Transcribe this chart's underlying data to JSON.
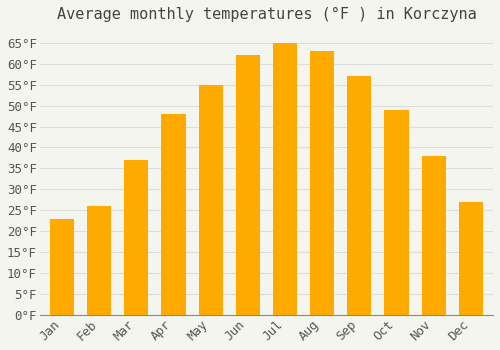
{
  "title": "Average monthly temperatures (°F ) in Korczyna",
  "months": [
    "Jan",
    "Feb",
    "Mar",
    "Apr",
    "May",
    "Jun",
    "Jul",
    "Aug",
    "Sep",
    "Oct",
    "Nov",
    "Dec"
  ],
  "values": [
    23,
    26,
    37,
    48,
    55,
    62,
    65,
    63,
    57,
    49,
    38,
    27
  ],
  "bar_color_top": "#FFAA00",
  "bar_color_bottom": "#FFD060",
  "bar_edge_color": "none",
  "background_color": "#F5F5F0",
  "grid_color": "#DDDDDD",
  "text_color": "#555555",
  "title_color": "#444444",
  "ylim": [
    0,
    68
  ],
  "yticks": [
    0,
    5,
    10,
    15,
    20,
    25,
    30,
    35,
    40,
    45,
    50,
    55,
    60,
    65
  ],
  "title_fontsize": 11,
  "tick_fontsize": 9,
  "bar_width": 0.65
}
